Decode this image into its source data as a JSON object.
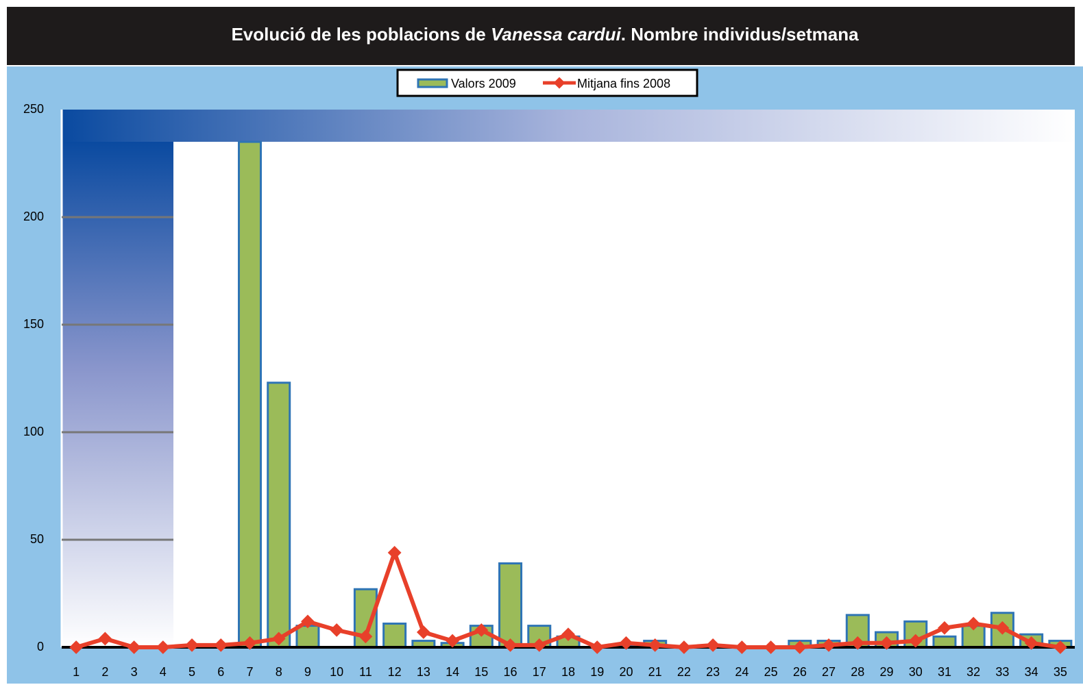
{
  "chart_data": {
    "type": "bar",
    "title": [
      "Evolució de les poblacions de ",
      "Vanessa cardui",
      ". Nombre individus/setmana"
    ],
    "categories": [
      "1",
      "2",
      "3",
      "4",
      "5",
      "6",
      "7",
      "8",
      "9",
      "10",
      "11",
      "12",
      "13",
      "14",
      "15",
      "16",
      "17",
      "18",
      "19",
      "20",
      "21",
      "22",
      "23",
      "24",
      "25",
      "26",
      "27",
      "28",
      "29",
      "30",
      "31",
      "32",
      "33",
      "34",
      "35"
    ],
    "series": [
      {
        "name": "Valors 2009",
        "color": "#9bbb59",
        "type": "bar",
        "values": [
          0,
          0,
          0,
          0,
          0,
          0,
          235,
          123,
          10,
          0,
          27,
          11,
          3,
          2,
          10,
          39,
          10,
          5,
          0,
          1,
          3,
          0,
          1,
          0,
          0,
          3,
          3,
          15,
          7,
          12,
          5,
          10,
          16,
          6,
          3
        ]
      },
      {
        "name": "Mitjana fins 2008",
        "color": "#e8402a",
        "type": "line",
        "values": [
          0,
          4,
          0,
          0,
          1,
          1,
          2,
          4,
          12,
          8,
          5,
          44,
          7,
          3,
          8,
          1,
          1,
          6,
          0,
          2,
          1,
          0,
          1,
          0,
          0,
          0,
          1,
          2,
          2,
          3,
          9,
          11,
          9,
          2,
          0
        ]
      }
    ],
    "ylim": [
      0,
      250
    ],
    "yticks": [
      0,
      50,
      100,
      150,
      200,
      250
    ],
    "grid": true,
    "legend": "top"
  }
}
